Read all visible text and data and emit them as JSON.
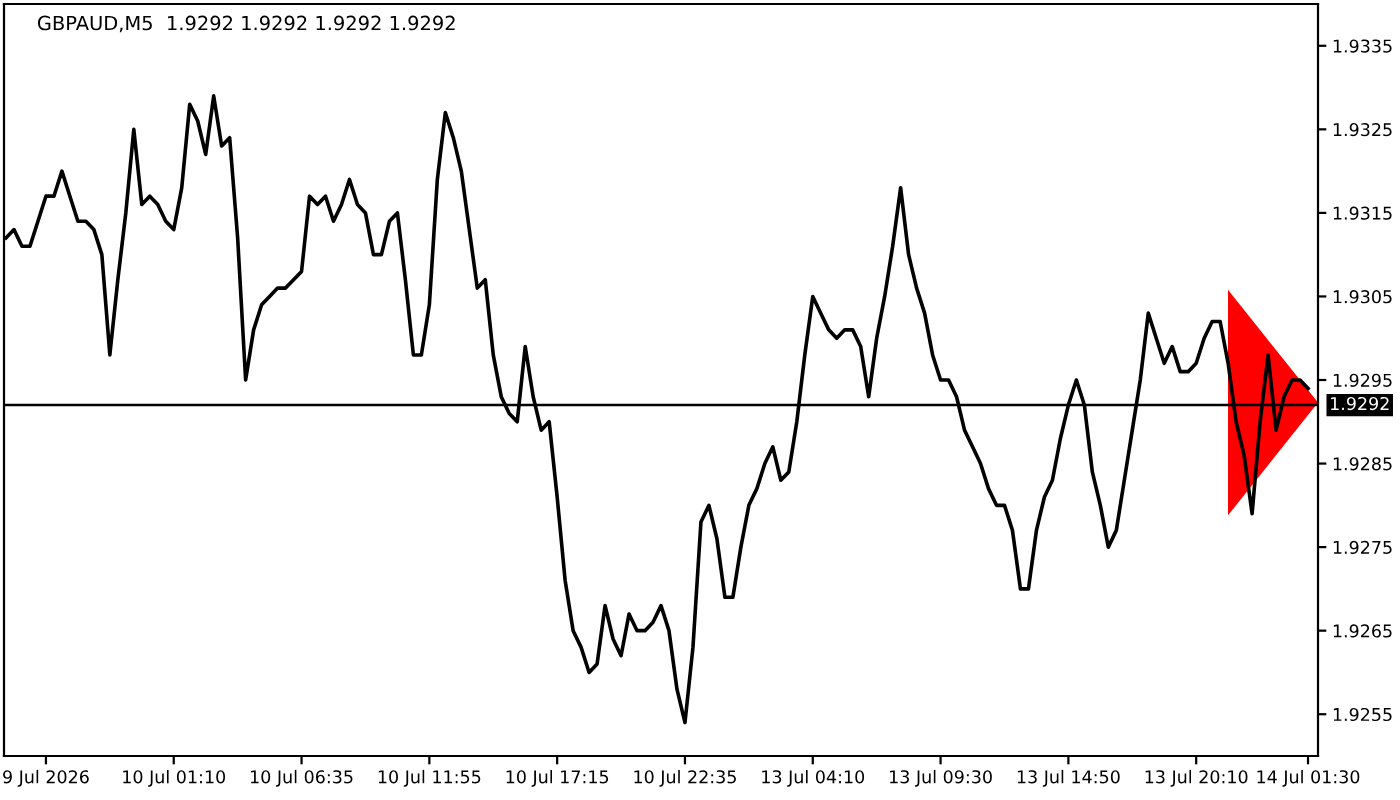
{
  "chart_data": {
    "type": "line",
    "title": "GBPAUD,M5  1.9292 1.9292 1.9292 1.9292",
    "categories": [
      null,
      null,
      null,
      null,
      null,
      "9 Jul 2026",
      null,
      null,
      null,
      null,
      null,
      null,
      null,
      null,
      null,
      null,
      null,
      null,
      null,
      null,
      null,
      "10 Jul 01:10",
      null,
      null,
      null,
      null,
      null,
      null,
      null,
      null,
      null,
      null,
      null,
      null,
      null,
      null,
      null,
      "10 Jul 06:35",
      null,
      null,
      null,
      null,
      null,
      null,
      null,
      null,
      null,
      null,
      null,
      null,
      null,
      null,
      null,
      "10 Jul 11:55",
      null,
      null,
      null,
      null,
      null,
      null,
      null,
      null,
      null,
      null,
      null,
      null,
      null,
      null,
      null,
      "10 Jul 17:15",
      null,
      null,
      null,
      null,
      null,
      null,
      null,
      null,
      null,
      null,
      null,
      null,
      null,
      null,
      null,
      "10 Jul 22:35",
      null,
      null,
      null,
      null,
      null,
      null,
      null,
      null,
      null,
      null,
      null,
      null,
      null,
      null,
      null,
      "13 Jul 04:10",
      null,
      null,
      null,
      null,
      null,
      null,
      null,
      null,
      null,
      null,
      null,
      null,
      null,
      null,
      null,
      "13 Jul 09:30",
      null,
      null,
      null,
      null,
      null,
      null,
      null,
      null,
      null,
      null,
      null,
      null,
      null,
      null,
      null,
      "13 Jul 14:50",
      null,
      null,
      null,
      null,
      null,
      null,
      null,
      null,
      null,
      null,
      null,
      null,
      null,
      null,
      null,
      "13 Jul 20:10",
      null,
      null,
      null,
      null,
      null,
      null,
      null,
      null,
      null,
      null,
      null,
      null,
      null,
      "14 Jul 01:30"
    ],
    "series": [
      {
        "color": "#000000",
        "values": [
          1.9312,
          1.9313,
          1.9311,
          1.9311,
          1.9314,
          1.9317,
          1.9317,
          1.932,
          1.9317,
          1.9314,
          1.9314,
          1.9313,
          1.931,
          1.9298,
          1.9307,
          1.9315,
          1.9325,
          1.9316,
          1.9317,
          1.9316,
          1.9314,
          1.9313,
          1.9318,
          1.9328,
          1.9326,
          1.9322,
          1.9329,
          1.9323,
          1.9324,
          1.9312,
          1.9295,
          1.9301,
          1.9304,
          1.9305,
          1.9306,
          1.9306,
          1.9307,
          1.9308,
          1.9317,
          1.9316,
          1.9317,
          1.9314,
          1.9316,
          1.9319,
          1.9316,
          1.9315,
          1.931,
          1.931,
          1.9314,
          1.9315,
          1.9307,
          1.9298,
          1.9298,
          1.9304,
          1.9319,
          1.9327,
          1.9324,
          1.932,
          1.9313,
          1.9306,
          1.9307,
          1.9298,
          1.9293,
          1.9291,
          1.929,
          1.9299,
          1.9293,
          1.9289,
          1.929,
          1.9281,
          1.9271,
          1.9265,
          1.9263,
          1.926,
          1.9261,
          1.9268,
          1.9264,
          1.9262,
          1.9267,
          1.9265,
          1.9265,
          1.9266,
          1.9268,
          1.9265,
          1.9258,
          1.9254,
          1.9263,
          1.9278,
          1.928,
          1.9276,
          1.9269,
          1.9269,
          1.9275,
          1.928,
          1.9282,
          1.9285,
          1.9287,
          1.9283,
          1.9284,
          1.929,
          1.9298,
          1.9305,
          1.9303,
          1.9301,
          1.93,
          1.9301,
          1.9301,
          1.9299,
          1.9293,
          1.93,
          1.9305,
          1.9311,
          1.9318,
          1.931,
          1.9306,
          1.9303,
          1.9298,
          1.9295,
          1.9295,
          1.9293,
          1.9289,
          1.9287,
          1.9285,
          1.9282,
          1.928,
          1.928,
          1.9277,
          1.927,
          1.927,
          1.9277,
          1.9281,
          1.9283,
          1.9288,
          1.9292,
          1.9295,
          1.9292,
          1.9284,
          1.928,
          1.9275,
          1.9277,
          1.9283,
          1.9289,
          1.9295,
          1.9303,
          1.93,
          1.9297,
          1.9299,
          1.9296,
          1.9296,
          1.9297,
          1.93,
          1.9302,
          1.9302,
          1.9297,
          1.929,
          1.9286,
          1.9279,
          1.929,
          1.9298,
          1.9289,
          1.9293,
          1.9295,
          1.9295,
          1.9294
        ]
      }
    ],
    "ylim": [
      1.925,
      1.934
    ],
    "yticks": [
      1.9255,
      1.9265,
      1.9275,
      1.9285,
      1.9295,
      1.9305,
      1.9315,
      1.9325,
      1.9335
    ],
    "ref_lines": [
      {
        "axis": "y",
        "value": 1.9292,
        "label": "1.9292",
        "color": "#000000"
      }
    ],
    "grid": false,
    "legend": false,
    "marker": "none",
    "line_style": "solid"
  }
}
